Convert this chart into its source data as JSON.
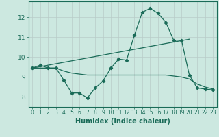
{
  "xlabel": "Humidex (Indice chaleur)",
  "ylabel": "",
  "bg_color": "#cce8e0",
  "line_color": "#1a6b58",
  "xlim": [
    -0.5,
    23.5
  ],
  "ylim": [
    7.5,
    12.8
  ],
  "yticks": [
    8,
    9,
    10,
    11,
    12
  ],
  "xticks": [
    0,
    1,
    2,
    3,
    4,
    5,
    6,
    7,
    8,
    9,
    10,
    11,
    12,
    13,
    14,
    15,
    16,
    17,
    18,
    19,
    20,
    21,
    22,
    23
  ],
  "line1_x": [
    0,
    1,
    2,
    3,
    4,
    5,
    6,
    7,
    8,
    9,
    10,
    11,
    12,
    13,
    14,
    15,
    16,
    17,
    18,
    19,
    20,
    21,
    22,
    23
  ],
  "line1_y": [
    9.45,
    9.6,
    9.45,
    9.45,
    8.85,
    8.2,
    8.2,
    7.95,
    8.45,
    8.8,
    9.45,
    9.9,
    9.85,
    11.1,
    12.25,
    12.45,
    12.2,
    11.75,
    10.85,
    10.85,
    9.1,
    8.45,
    8.4,
    8.35
  ],
  "line2_x": [
    0,
    20
  ],
  "line2_y": [
    9.45,
    10.9
  ],
  "line3_x": [
    0,
    1,
    2,
    3,
    4,
    5,
    6,
    7,
    8,
    9,
    10,
    11,
    12,
    13,
    14,
    15,
    16,
    17,
    18,
    19,
    20,
    21,
    22,
    23
  ],
  "line3_y": [
    9.45,
    9.45,
    9.45,
    9.45,
    9.3,
    9.2,
    9.15,
    9.1,
    9.1,
    9.1,
    9.1,
    9.1,
    9.1,
    9.1,
    9.1,
    9.1,
    9.1,
    9.1,
    9.05,
    9.0,
    8.9,
    8.65,
    8.5,
    8.4
  ]
}
